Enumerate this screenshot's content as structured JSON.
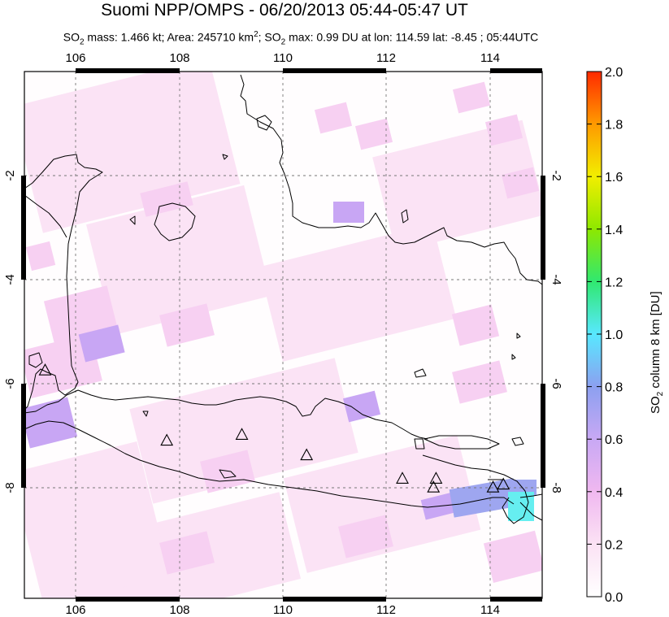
{
  "header": {
    "title": "Suomi NPP/OMPS - 06/20/2013 05:44-05:47 UT",
    "stats": {
      "mass_label": "mass: 1.466 kt; Area: 245710 km",
      "max_label": "max: 0.99 DU at lon: 114.59 lat: -8.45 ; 05:44UTC"
    }
  },
  "map": {
    "lon_range": [
      105,
      115
    ],
    "lat_range": [
      -10,
      -1
    ],
    "lon_ticks": [
      "106",
      "108",
      "110",
      "112",
      "114"
    ],
    "lat_ticks": [
      "-2",
      "-4",
      "-6",
      "-8"
    ],
    "grid": "dashed",
    "volcano_marker": "triangle-outline",
    "volcanoes": [
      {
        "lon": 105.4,
        "lat": -6.1
      },
      {
        "lon": 107.75,
        "lat": -7.3
      },
      {
        "lon": 109.2,
        "lat": -7.2
      },
      {
        "lon": 110.45,
        "lat": -7.55
      },
      {
        "lon": 112.3,
        "lat": -7.95
      },
      {
        "lon": 112.9,
        "lat": -8.1
      },
      {
        "lon": 112.95,
        "lat": -7.95
      },
      {
        "lon": 114.05,
        "lat": -8.1
      },
      {
        "lon": 114.25,
        "lat": -8.05
      }
    ],
    "so2_field_note": "pixel swath of SO2 column values in DU"
  },
  "colorbar": {
    "ticks": [
      "2.0",
      "1.8",
      "1.6",
      "1.4",
      "1.2",
      "1.0",
      "0.8",
      "0.6",
      "0.4",
      "0.2",
      "0.0"
    ],
    "label": "column 8 km [DU]",
    "colors": [
      "#ff2a00",
      "#ff9a00",
      "#f2f200",
      "#7fe000",
      "#22dd44",
      "#4cf0e8",
      "#9aa8f0",
      "#c6a6f2",
      "#f0b8f0",
      "#fbe8f4",
      "#ffffff"
    ]
  }
}
